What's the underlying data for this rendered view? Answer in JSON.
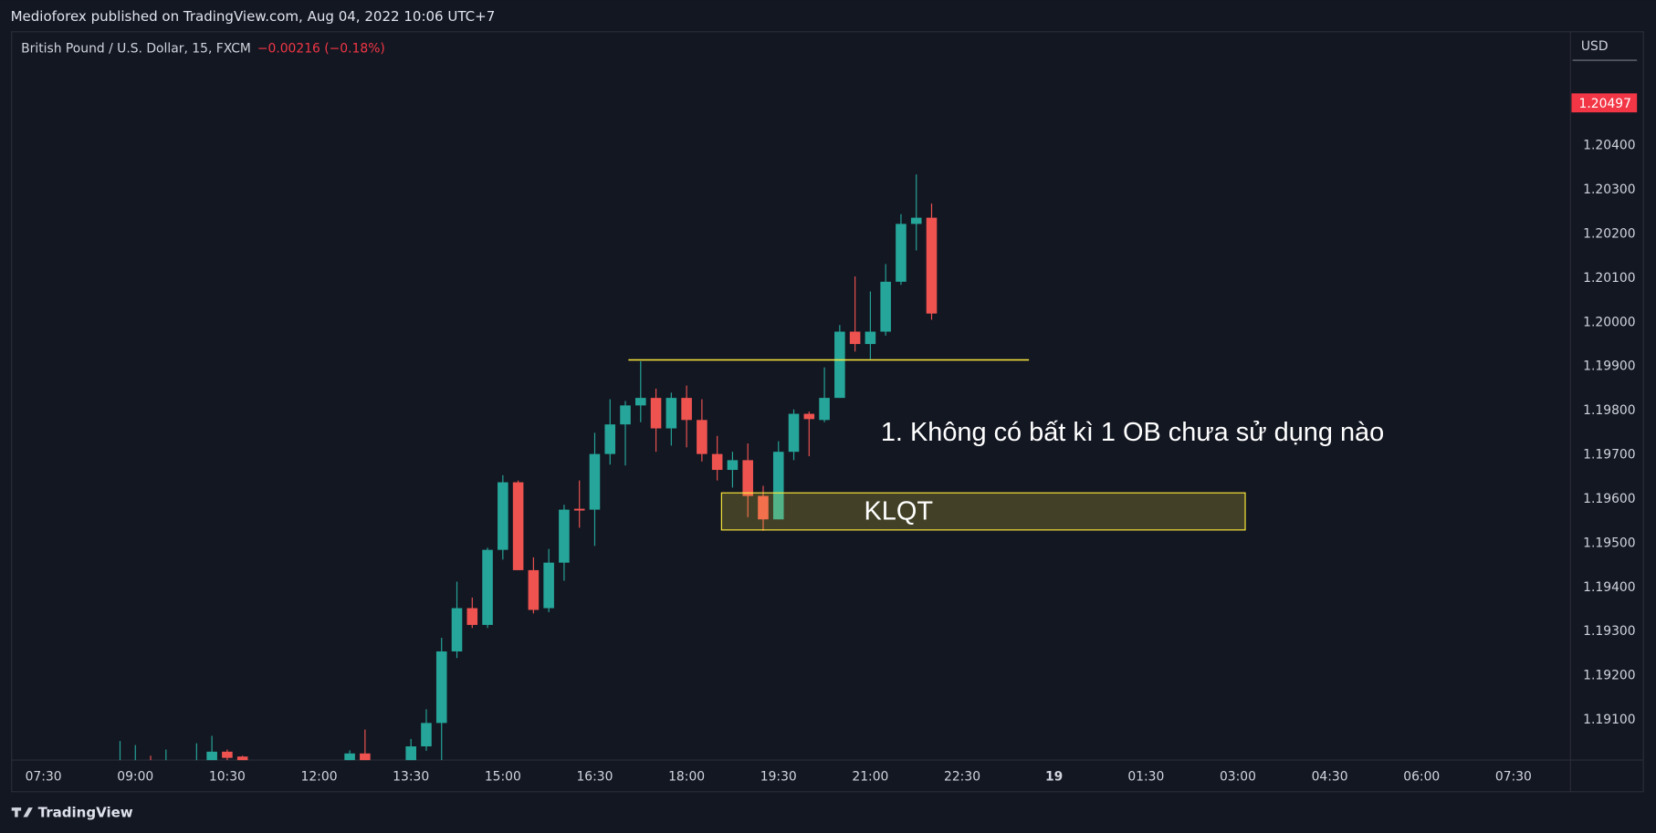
{
  "header": "Medioforex published on TradingView.com, Aug 04, 2022 10:06 UTC+7",
  "footer": "TradingView",
  "chart_data": {
    "type": "candlestick",
    "symbol": "British Pound / U.S. Dollar, 15, FXCM",
    "change": "−0.00216 (−0.18%)",
    "currency": "USD",
    "up_color": "#26a69a",
    "down_color": "#ef5350",
    "grid": false,
    "x": [
      8.75,
      9,
      9.25,
      9.5,
      10,
      10.25,
      10.5,
      10.75,
      12.5,
      12.75,
      13.5,
      13.75,
      14,
      14.25,
      14.5,
      14.75,
      15,
      15.25,
      15.5,
      15.75,
      16,
      16.25,
      16.5,
      16.75,
      17,
      17.25,
      17.5,
      17.75,
      18,
      18.25,
      18.5,
      18.75,
      19,
      19.25,
      19.5,
      19.75,
      20,
      20.25,
      20.5,
      20.75,
      21,
      21.25,
      21.5,
      21.75,
      22
    ],
    "open": [
      1.1899,
      1.18995,
      1.19005,
      1.1899,
      1.18995,
      1.19,
      1.19028,
      1.19017,
      1.19005,
      1.19024,
      1.19,
      1.1904,
      1.19093,
      1.19255,
      1.19353,
      1.19315,
      1.19485,
      1.19638,
      1.19439,
      1.19353,
      1.19456,
      1.19578,
      1.19576,
      1.19702,
      1.19769,
      1.19812,
      1.19829,
      1.1976,
      1.19829,
      1.19779,
      1.19702,
      1.19666,
      1.19688,
      1.19607,
      1.19554,
      1.19707,
      1.19793,
      1.19779,
      1.19829,
      1.19979,
      1.19951,
      1.19979,
      1.20092,
      1.20223,
      1.20237
    ],
    "high": [
      1.19052,
      1.19043,
      1.19019,
      1.19033,
      1.19047,
      1.19064,
      1.19033,
      1.19019,
      1.19031,
      1.19078,
      1.19057,
      1.19124,
      1.19286,
      1.19413,
      1.19377,
      1.1949,
      1.19654,
      1.19642,
      1.19468,
      1.19487,
      1.19587,
      1.19642,
      1.1975,
      1.19826,
      1.19822,
      1.19912,
      1.1985,
      1.19841,
      1.19857,
      1.19826,
      1.19743,
      1.19707,
      1.19726,
      1.1963,
      1.19731,
      1.19803,
      1.19798,
      1.19898,
      1.19994,
      1.20104,
      1.2007,
      1.20132,
      1.20245,
      1.20335,
      1.20269
    ],
    "low": [
      1.1897,
      1.18975,
      1.1897,
      1.18975,
      1.1898,
      1.18985,
      1.1899,
      1.18985,
      1.1899,
      1.1899,
      1.1899,
      1.1903,
      1.19009,
      1.1924,
      1.19308,
      1.19308,
      1.19463,
      1.19439,
      1.19341,
      1.19344,
      1.19415,
      1.19535,
      1.19494,
      1.19678,
      1.19676,
      1.19774,
      1.19707,
      1.19721,
      1.19717,
      1.19685,
      1.19642,
      1.19626,
      1.19559,
      1.19528,
      1.19554,
      1.19688,
      1.19697,
      1.19774,
      1.19829,
      1.19934,
      1.19917,
      1.1997,
      1.20085,
      1.20163,
      1.20006
    ],
    "close": [
      1.19,
      1.19005,
      1.1899,
      1.19,
      1.19,
      1.19028,
      1.19014,
      1.19,
      1.19024,
      1.19005,
      1.1904,
      1.19093,
      1.19255,
      1.19353,
      1.19315,
      1.19485,
      1.19638,
      1.19439,
      1.19349,
      1.19456,
      1.19576,
      1.19574,
      1.19702,
      1.19769,
      1.19812,
      1.19829,
      1.1976,
      1.19829,
      1.19779,
      1.19702,
      1.19666,
      1.19688,
      1.19607,
      1.19554,
      1.19707,
      1.19793,
      1.19781,
      1.19829,
      1.19979,
      1.19951,
      1.19979,
      1.20092,
      1.20223,
      1.20237,
      1.2002
    ],
    "xlim": [
      6.98,
      32.43
    ],
    "xticks": [
      {
        "value": 7.5,
        "label": "07:30"
      },
      {
        "value": 9,
        "label": "09:00"
      },
      {
        "value": 10.5,
        "label": "10:30"
      },
      {
        "value": 12,
        "label": "12:00"
      },
      {
        "value": 13.5,
        "label": "13:30"
      },
      {
        "value": 15,
        "label": "15:00"
      },
      {
        "value": 16.5,
        "label": "16:30"
      },
      {
        "value": 18,
        "label": "18:00"
      },
      {
        "value": 19.5,
        "label": "19:30"
      },
      {
        "value": 21,
        "label": "21:00"
      },
      {
        "value": 22.5,
        "label": "22:30"
      },
      {
        "value": 24,
        "label": "19"
      },
      {
        "value": 25.5,
        "label": "01:30"
      },
      {
        "value": 27,
        "label": "03:00"
      },
      {
        "value": 28.5,
        "label": "04:30"
      },
      {
        "value": 30,
        "label": "06:00"
      },
      {
        "value": 31.5,
        "label": "07:30"
      }
    ],
    "ylim": [
      1.19009,
      1.20658
    ],
    "yticks": [
      {
        "value": 1.191,
        "label": "1.19100"
      },
      {
        "value": 1.192,
        "label": "1.19200"
      },
      {
        "value": 1.193,
        "label": "1.19300"
      },
      {
        "value": 1.194,
        "label": "1.19400"
      },
      {
        "value": 1.195,
        "label": "1.19500"
      },
      {
        "value": 1.196,
        "label": "1.19600"
      },
      {
        "value": 1.197,
        "label": "1.19700"
      },
      {
        "value": 1.198,
        "label": "1.19800"
      },
      {
        "value": 1.199,
        "label": "1.19900"
      },
      {
        "value": 1.2,
        "label": "1.20000"
      },
      {
        "value": 1.201,
        "label": "1.20100"
      },
      {
        "value": 1.202,
        "label": "1.20200"
      },
      {
        "value": 1.203,
        "label": "1.20300"
      },
      {
        "value": 1.204,
        "label": "1.20400"
      }
    ],
    "last_price": {
      "value": 1.20497,
      "label": "1.20497",
      "color": "#f23645"
    },
    "level_line": {
      "y": 1.19915,
      "x": [
        17.05,
        23.59
      ],
      "color": "#ffeb3b"
    },
    "zone": {
      "label": "KLQT",
      "y": [
        1.19614,
        1.1953
      ],
      "x": [
        18.57,
        27.12
      ],
      "color": "#ffeb3b"
    },
    "annotation": "1. Không có bất kì 1 OB chưa sử dụng nào"
  }
}
